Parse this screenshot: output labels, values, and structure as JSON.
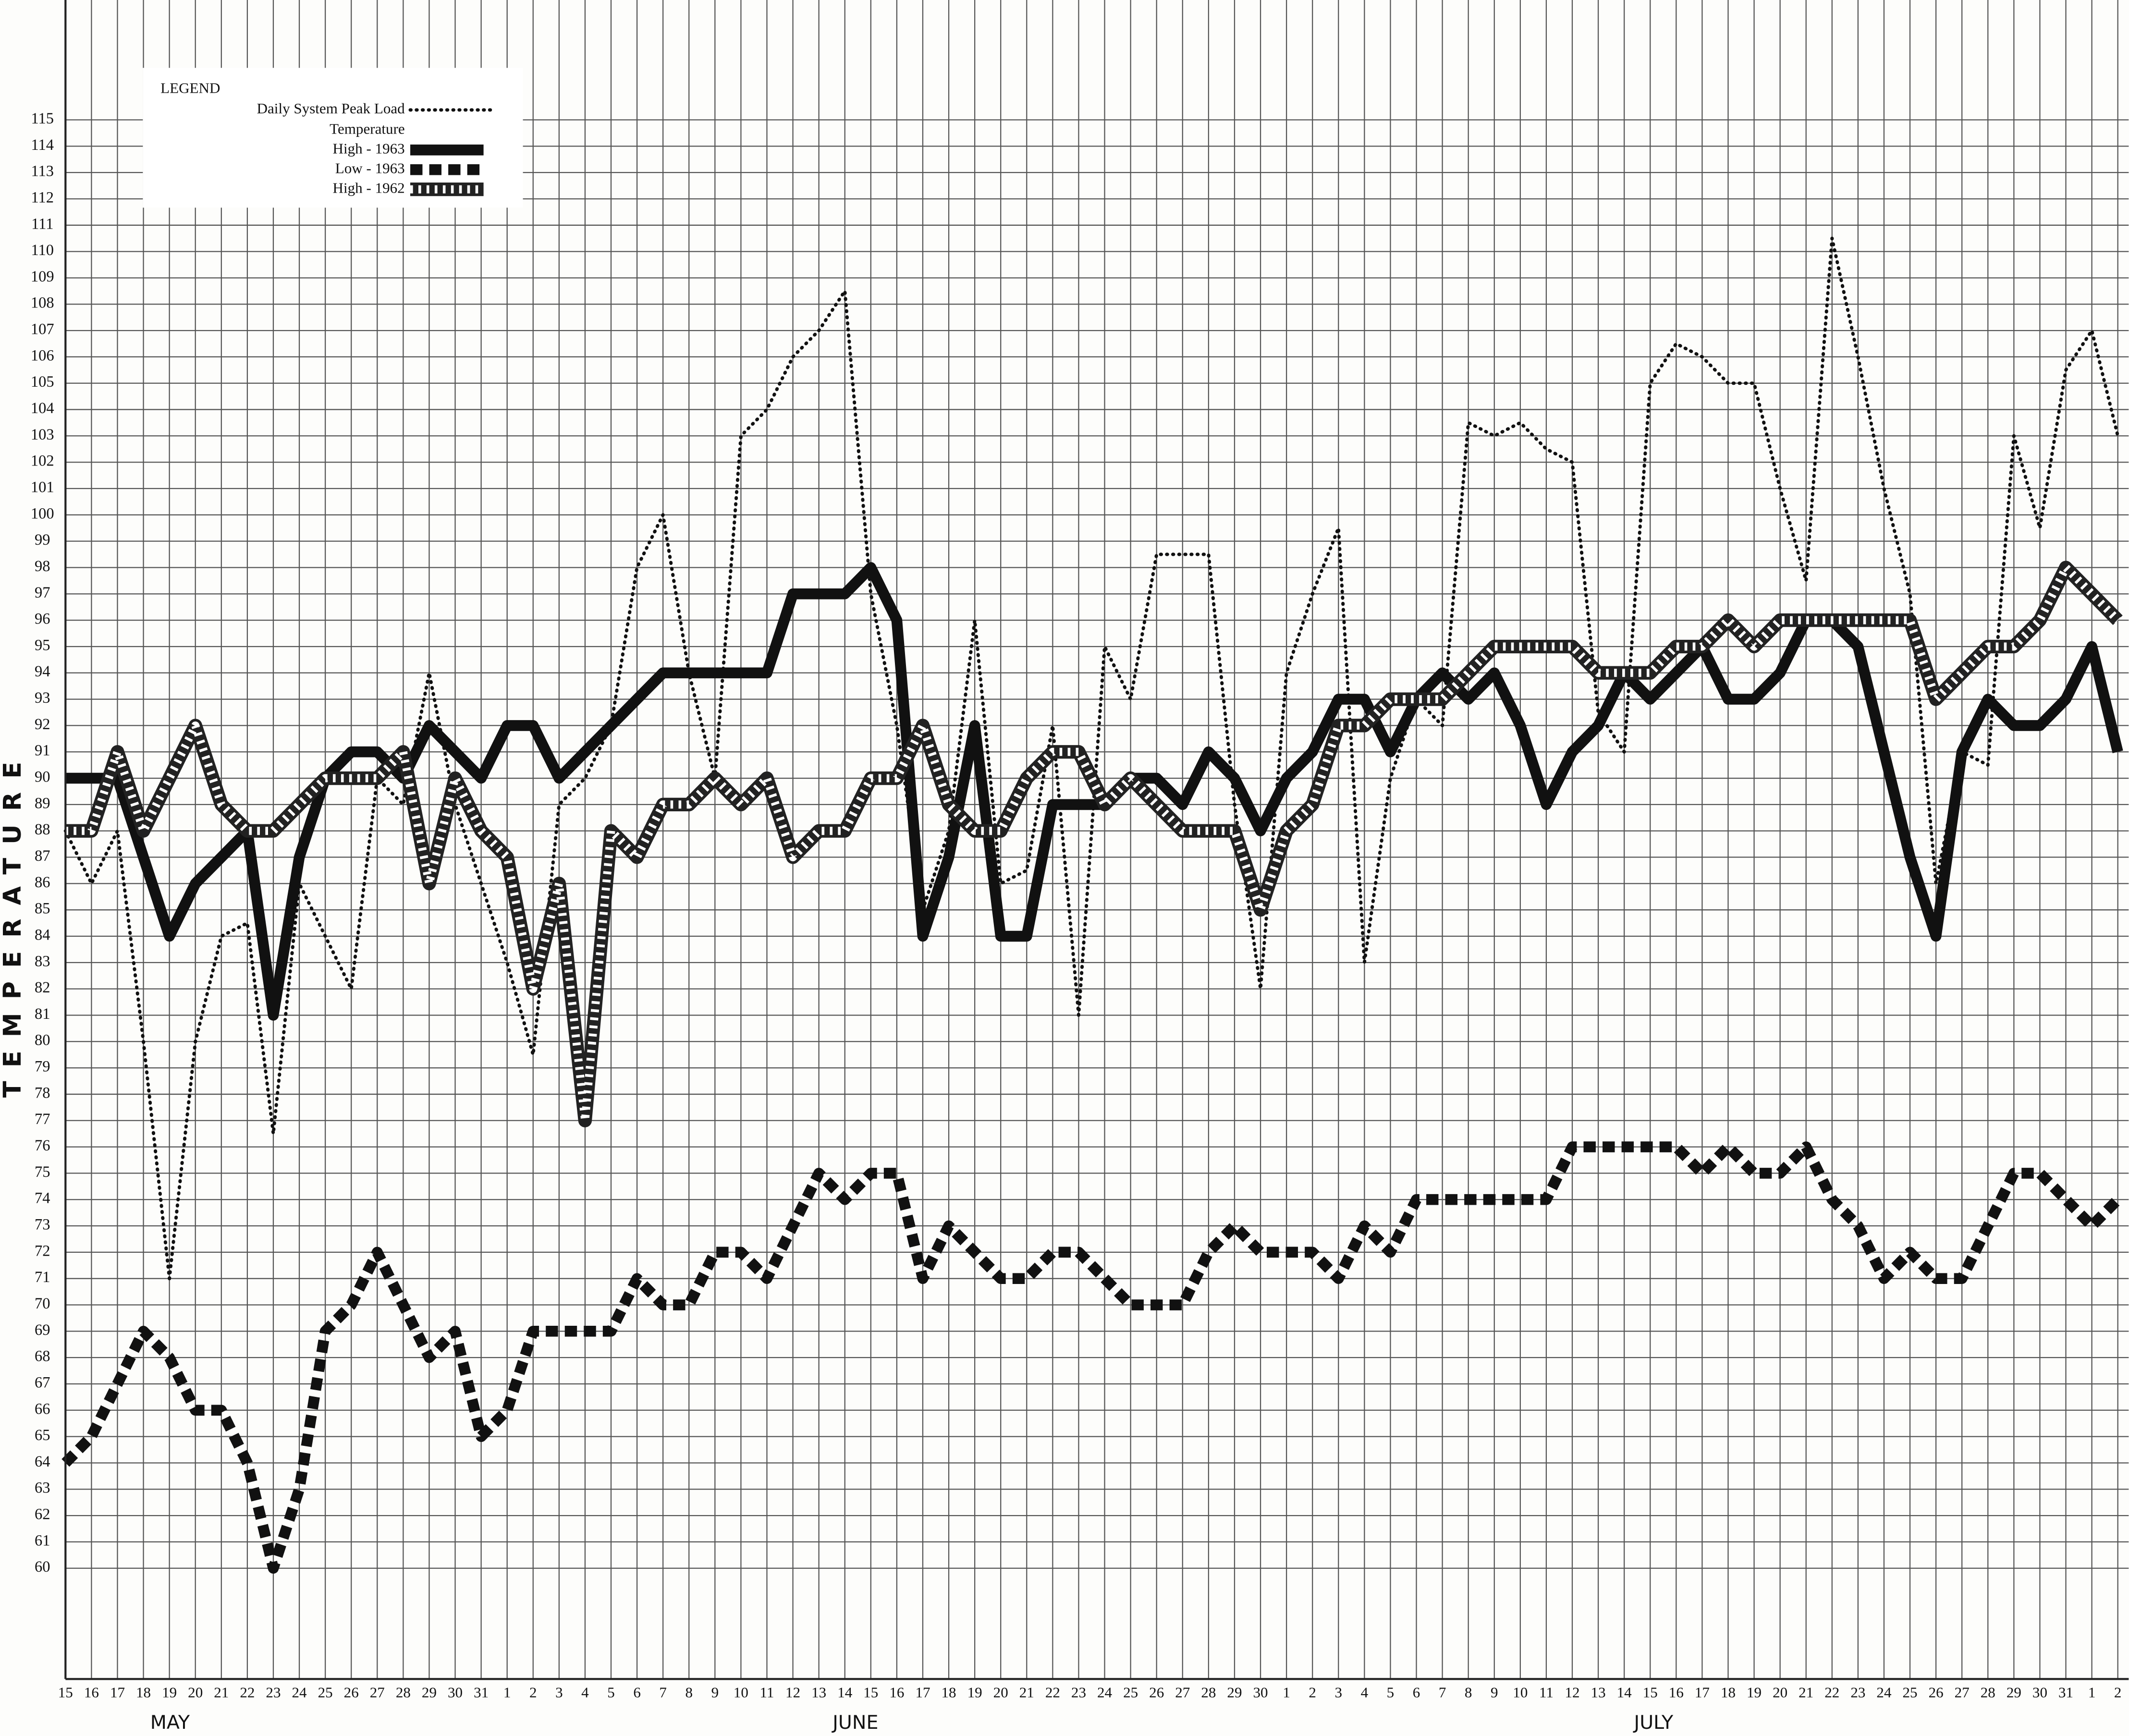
{
  "chart_data": {
    "type": "line",
    "y_label": "TEMPERATURE",
    "legend_title": "LEGEND",
    "legend_subtitle": "Temperature",
    "annotations": [
      "MAY",
      "JUNE",
      "JULY"
    ],
    "categories": [
      "15",
      "16",
      "17",
      "18",
      "19",
      "20",
      "21",
      "22",
      "23",
      "24",
      "25",
      "26",
      "27",
      "28",
      "29",
      "30",
      "31",
      "1",
      "2",
      "3",
      "4",
      "5",
      "6",
      "7",
      "8",
      "9",
      "10",
      "11",
      "12",
      "13",
      "14",
      "15",
      "16",
      "17",
      "18",
      "19",
      "20",
      "21",
      "22",
      "23",
      "24",
      "25",
      "26",
      "27",
      "28",
      "29",
      "30",
      "1",
      "2",
      "3",
      "4",
      "5",
      "6",
      "7",
      "8",
      "9",
      "10",
      "11",
      "12",
      "13",
      "14",
      "15",
      "16",
      "17",
      "18",
      "19",
      "20",
      "21",
      "22",
      "23",
      "24",
      "25",
      "26",
      "27",
      "28",
      "29",
      "30",
      "31",
      "1",
      "2"
    ],
    "ylim": [
      56,
      119.5
    ],
    "yticks": [
      60,
      61,
      62,
      63,
      64,
      65,
      66,
      67,
      68,
      69,
      70,
      71,
      72,
      73,
      74,
      75,
      76,
      77,
      78,
      79,
      80,
      81,
      82,
      83,
      84,
      85,
      86,
      87,
      88,
      89,
      90,
      91,
      92,
      93,
      94,
      95,
      96,
      97,
      98,
      99,
      100,
      101,
      102,
      103,
      104,
      105,
      106,
      107,
      108,
      109,
      110,
      111,
      112,
      113,
      114,
      115
    ],
    "grid": true,
    "legend_position": "upper left",
    "series": [
      {
        "name": "Daily System Peak Load",
        "style": "dotted",
        "color": "#111111",
        "values": [
          88,
          86,
          88,
          80,
          71,
          80,
          84,
          84.5,
          76.5,
          86,
          84,
          82,
          90,
          89,
          94,
          89,
          86,
          83,
          79.5,
          89,
          90,
          92,
          98,
          100,
          94,
          90,
          103,
          104,
          106,
          107,
          108.5,
          97,
          92,
          85,
          88,
          96,
          86,
          86.5,
          92,
          81,
          95,
          93,
          98.5,
          98.5,
          98.5,
          89,
          82,
          94,
          97,
          99.5,
          83,
          90,
          93,
          92,
          103.5,
          103,
          103.5,
          102.5,
          102,
          92.5,
          91,
          105,
          106.5,
          106,
          105,
          105,
          101,
          97.5,
          110.5,
          106,
          101,
          97,
          86,
          91,
          90.5,
          103,
          99.5,
          105.5,
          107,
          103
        ]
      },
      {
        "name": "High - 1963",
        "style": "solid",
        "color": "#111111",
        "values": [
          90,
          90,
          90,
          87,
          84,
          86,
          87,
          88,
          81,
          87,
          90,
          91,
          91,
          90,
          92,
          91,
          90,
          92,
          92,
          90,
          91,
          92,
          93,
          94,
          94,
          94,
          94,
          94,
          97,
          97,
          97,
          98,
          96,
          84,
          87,
          92,
          84,
          84,
          89,
          89,
          89,
          90,
          90,
          89,
          91,
          90,
          88,
          90,
          91,
          93,
          93,
          91,
          93,
          94,
          93,
          94,
          92,
          89,
          91,
          92,
          94,
          93,
          94,
          95,
          93,
          93,
          94,
          96,
          96,
          95,
          91,
          87,
          84,
          91,
          93,
          92,
          92,
          93,
          95,
          91
        ]
      },
      {
        "name": "Low - 1963",
        "style": "dashed",
        "color": "#111111",
        "values": [
          64,
          65,
          67,
          69,
          68,
          66,
          66,
          64,
          60,
          63,
          69,
          70,
          72,
          70,
          68,
          69,
          65,
          66,
          69,
          69,
          69,
          69,
          71,
          70,
          70,
          72,
          72,
          71,
          73,
          75,
          74,
          75,
          75,
          71,
          73,
          72,
          71,
          71,
          72,
          72,
          71,
          70,
          70,
          70,
          72,
          73,
          72,
          72,
          72,
          71,
          73,
          72,
          74,
          74,
          74,
          74,
          74,
          74,
          76,
          76,
          76,
          76,
          76,
          75,
          76,
          75,
          75,
          76,
          74,
          73,
          71,
          72,
          71,
          71,
          73,
          75,
          75,
          74,
          73,
          74
        ]
      },
      {
        "name": "High - 1962",
        "style": "hatched",
        "color": "#222222",
        "values": [
          88,
          88,
          91,
          88,
          90,
          92,
          89,
          88,
          88,
          89,
          90,
          90,
          90,
          91,
          86,
          90,
          88,
          87,
          82,
          86,
          77,
          88,
          87,
          89,
          89,
          90,
          89,
          90,
          87,
          88,
          88,
          90,
          90,
          92,
          89,
          88,
          88,
          90,
          91,
          91,
          89,
          90,
          89,
          88,
          88,
          88,
          85,
          88,
          89,
          92,
          92,
          93,
          93,
          93,
          94,
          95,
          95,
          95,
          95,
          94,
          94,
          94,
          95,
          95,
          96,
          95,
          96,
          96,
          96,
          96,
          96,
          96,
          93,
          94,
          95,
          95,
          96,
          98,
          97,
          96
        ]
      }
    ]
  }
}
